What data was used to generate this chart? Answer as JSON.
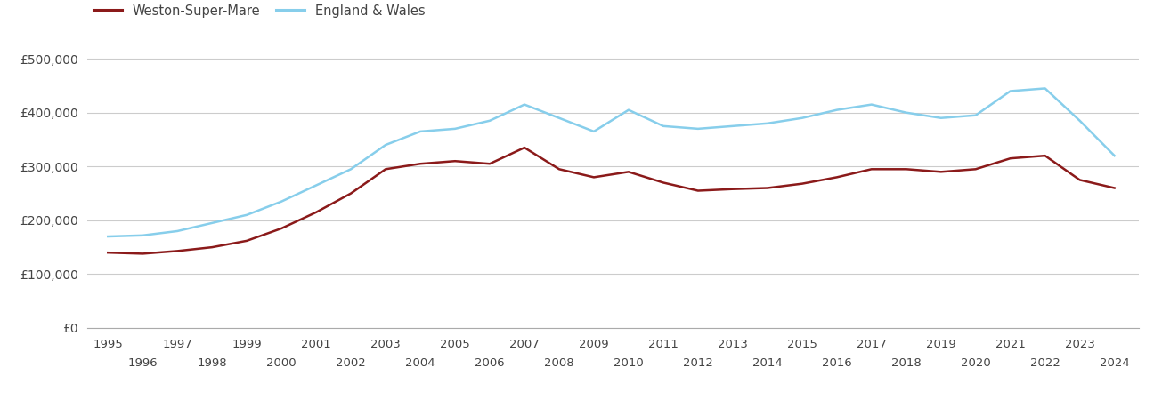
{
  "weston_years": [
    1995,
    1996,
    1997,
    1998,
    1999,
    2000,
    2001,
    2002,
    2003,
    2004,
    2005,
    2006,
    2007,
    2008,
    2009,
    2010,
    2011,
    2012,
    2013,
    2014,
    2015,
    2016,
    2017,
    2018,
    2019,
    2020,
    2021,
    2022,
    2023,
    2024
  ],
  "weston_values": [
    140000,
    138000,
    143000,
    150000,
    162000,
    185000,
    215000,
    250000,
    295000,
    305000,
    310000,
    305000,
    335000,
    295000,
    280000,
    290000,
    270000,
    255000,
    258000,
    260000,
    268000,
    280000,
    295000,
    295000,
    290000,
    295000,
    315000,
    320000,
    275000,
    260000
  ],
  "england_years": [
    1995,
    1996,
    1997,
    1998,
    1999,
    2000,
    2001,
    2002,
    2003,
    2004,
    2005,
    2006,
    2007,
    2008,
    2009,
    2010,
    2011,
    2012,
    2013,
    2014,
    2015,
    2016,
    2017,
    2018,
    2019,
    2020,
    2021,
    2022,
    2023,
    2024
  ],
  "england_values": [
    170000,
    172000,
    180000,
    195000,
    210000,
    235000,
    265000,
    295000,
    340000,
    365000,
    370000,
    385000,
    415000,
    390000,
    365000,
    405000,
    375000,
    370000,
    375000,
    380000,
    390000,
    405000,
    415000,
    400000,
    390000,
    395000,
    440000,
    445000,
    385000,
    320000
  ],
  "weston_color": "#8b1a1a",
  "england_color": "#87ceeb",
  "background_color": "#ffffff",
  "grid_color": "#cccccc",
  "ylim": [
    0,
    520000
  ],
  "yticks": [
    0,
    100000,
    200000,
    300000,
    400000,
    500000
  ],
  "ytick_labels": [
    "£0",
    "£100,000",
    "£200,000",
    "£300,000",
    "£400,000",
    "£500,000"
  ],
  "legend_weston": "Weston-Super-Mare",
  "legend_england": "England & Wales",
  "line_width": 1.8,
  "odd_years": [
    1995,
    1997,
    1999,
    2001,
    2003,
    2005,
    2007,
    2009,
    2011,
    2013,
    2015,
    2017,
    2019,
    2021,
    2023
  ],
  "even_years": [
    1996,
    1998,
    2000,
    2002,
    2004,
    2006,
    2008,
    2010,
    2012,
    2014,
    2016,
    2018,
    2020,
    2022,
    2024
  ]
}
